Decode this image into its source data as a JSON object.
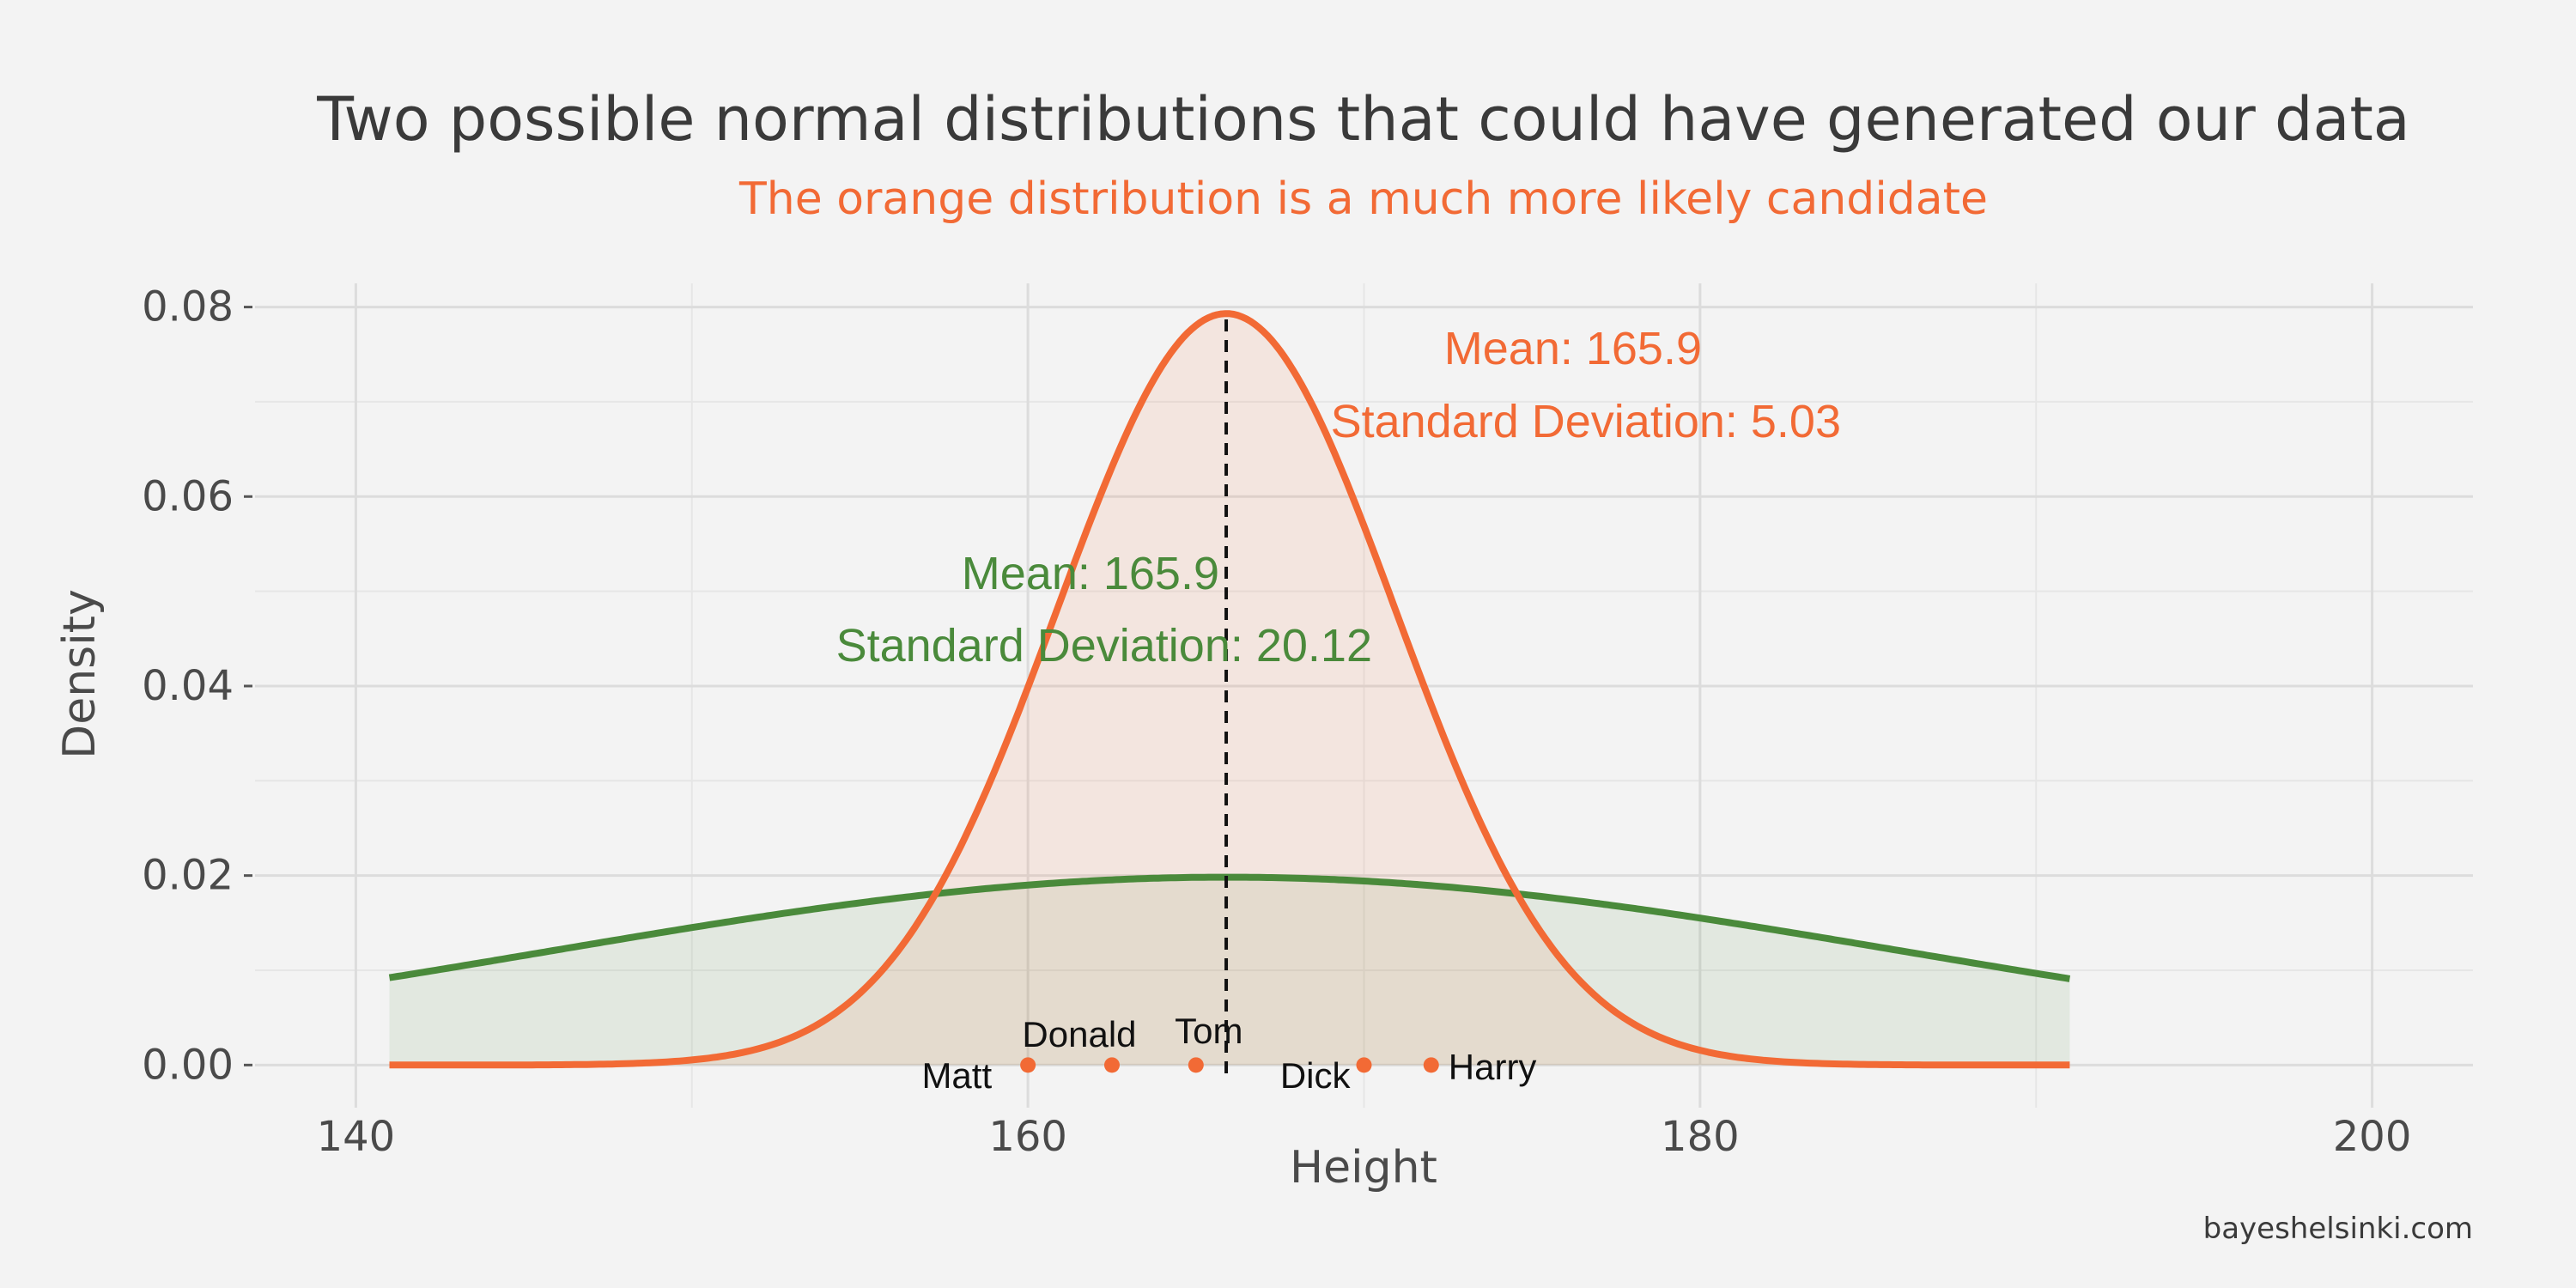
{
  "chart_data": {
    "type": "line",
    "title": "Two possible normal distributions that could have generated our data",
    "subtitle": "The orange distribution is a much more likely candidate",
    "xlabel": "Height",
    "ylabel": "Density",
    "xlim": [
      137,
      203
    ],
    "ylim": [
      -0.0045,
      0.0825
    ],
    "x_ticks": [
      140,
      160,
      180,
      200
    ],
    "x_tick_labels": [
      "140",
      "160",
      "180",
      "200"
    ],
    "y_ticks": [
      0,
      0.02,
      0.04,
      0.06,
      0.08
    ],
    "y_tick_labels": [
      "0.00",
      "0.02",
      "0.04",
      "0.06",
      "0.08"
    ],
    "grid": true,
    "legend": "none",
    "series": [
      {
        "mean": 165.9,
        "sd": 20.12,
        "x_range": [
          141,
          191
        ],
        "color": "#4a8a3b",
        "fill": "#4a8a3b",
        "annotation": [
          "Mean: 165.9",
          "Standard Deviation: 20.12"
        ]
      },
      {
        "mean": 165.9,
        "sd": 5.03,
        "x_range": [
          141,
          191
        ],
        "color": "#f26a35",
        "fill": "#f26a35",
        "annotation": [
          "Mean: 165.9",
          "Standard Deviation: 5.03"
        ]
      }
    ],
    "vline": {
      "x": 165.9,
      "style": "dashed"
    },
    "points": [
      {
        "name": "Matt",
        "x": 160,
        "y": 0
      },
      {
        "name": "Donald",
        "x": 162.5,
        "y": 0
      },
      {
        "name": "Tom",
        "x": 165,
        "y": 0
      },
      {
        "name": "Dick",
        "x": 170,
        "y": 0
      },
      {
        "name": "Harry",
        "x": 172,
        "y": 0
      }
    ],
    "point_color": "#f26a35"
  },
  "caption": "bayeshelsinki.com"
}
